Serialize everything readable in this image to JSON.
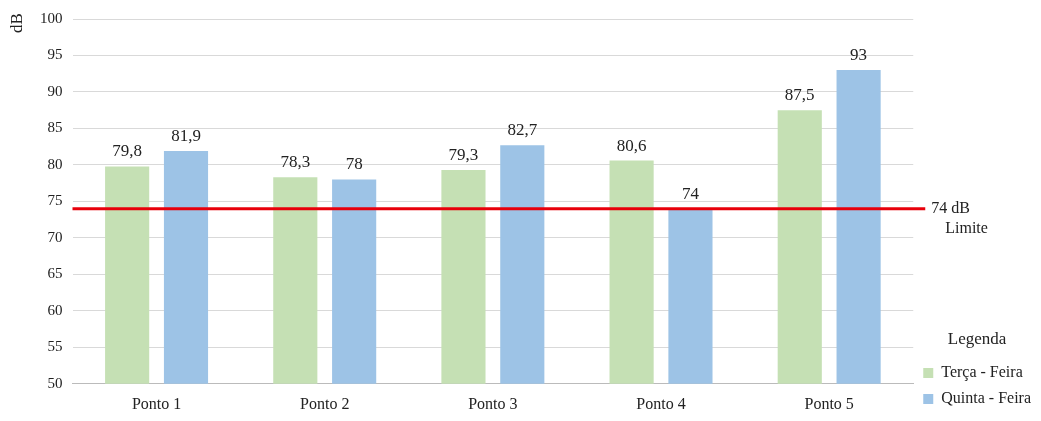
{
  "chart_data": {
    "type": "bar",
    "ylabel": "dB",
    "legend_title": "Legenda",
    "categories": [
      "Ponto 1",
      "Ponto 2",
      "Ponto 3",
      "Ponto 4",
      "Ponto 5"
    ],
    "series": [
      {
        "name": "Terça - Feira",
        "color": "#c5e0b4",
        "values": [
          79.8,
          78.3,
          79.3,
          80.6,
          87.5
        ],
        "value_labels": [
          "79,8",
          "78,3",
          "79,3",
          "80,6",
          "87,5"
        ]
      },
      {
        "name": "Quinta - Feira",
        "color": "#9dc3e6",
        "values": [
          81.9,
          78,
          82.7,
          74,
          93
        ],
        "value_labels": [
          "81,9",
          "78",
          "82,7",
          "74",
          "93"
        ]
      }
    ],
    "ylim": [
      50,
      100
    ],
    "yticks": [
      50,
      55,
      60,
      65,
      70,
      75,
      80,
      85,
      90,
      95,
      100
    ],
    "grid": "y",
    "legend": "bottom right",
    "ref_lines": [
      {
        "axis": "y",
        "value": 74,
        "label": "74 dB\nLimite",
        "color": "#e8000b"
      }
    ]
  }
}
